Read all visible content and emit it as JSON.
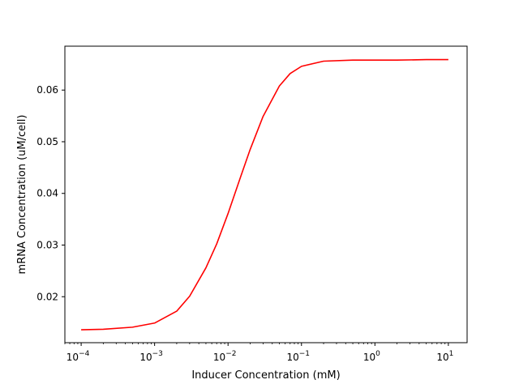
{
  "chart_data": {
    "type": "line",
    "title": "",
    "xlabel": "Inducer Concentration (mM)",
    "ylabel": "mRNA Concentration (uM/cell)",
    "x_scale": "log",
    "xlim": [
      6e-05,
      18
    ],
    "ylim": [
      0.0111,
      0.0685
    ],
    "grid": false,
    "x_ticks": [
      {
        "value": 0.0001,
        "base": "10",
        "exp": "−4"
      },
      {
        "value": 0.001,
        "base": "10",
        "exp": "−3"
      },
      {
        "value": 0.01,
        "base": "10",
        "exp": "−2"
      },
      {
        "value": 0.1,
        "base": "10",
        "exp": "−1"
      },
      {
        "value": 1,
        "base": "10",
        "exp": "0"
      },
      {
        "value": 10,
        "base": "10",
        "exp": "1"
      }
    ],
    "y_ticks": [
      {
        "value": 0.02,
        "label": "0.02"
      },
      {
        "value": 0.03,
        "label": "0.03"
      },
      {
        "value": 0.04,
        "label": "0.04"
      },
      {
        "value": 0.05,
        "label": "0.05"
      },
      {
        "value": 0.06,
        "label": "0.06"
      }
    ],
    "series": [
      {
        "color": "#ff0000",
        "x": [
          0.0001,
          0.0002,
          0.0005,
          0.001,
          0.002,
          0.003,
          0.005,
          0.007,
          0.01,
          0.015,
          0.02,
          0.03,
          0.05,
          0.07,
          0.1,
          0.2,
          0.5,
          1,
          2,
          5,
          10
        ],
        "y": [
          0.0136,
          0.0137,
          0.0141,
          0.0149,
          0.0172,
          0.0201,
          0.0256,
          0.0302,
          0.0361,
          0.0434,
          0.0485,
          0.0549,
          0.0608,
          0.0632,
          0.0646,
          0.0656,
          0.0658,
          0.0658,
          0.0658,
          0.0659,
          0.0659
        ]
      }
    ]
  }
}
